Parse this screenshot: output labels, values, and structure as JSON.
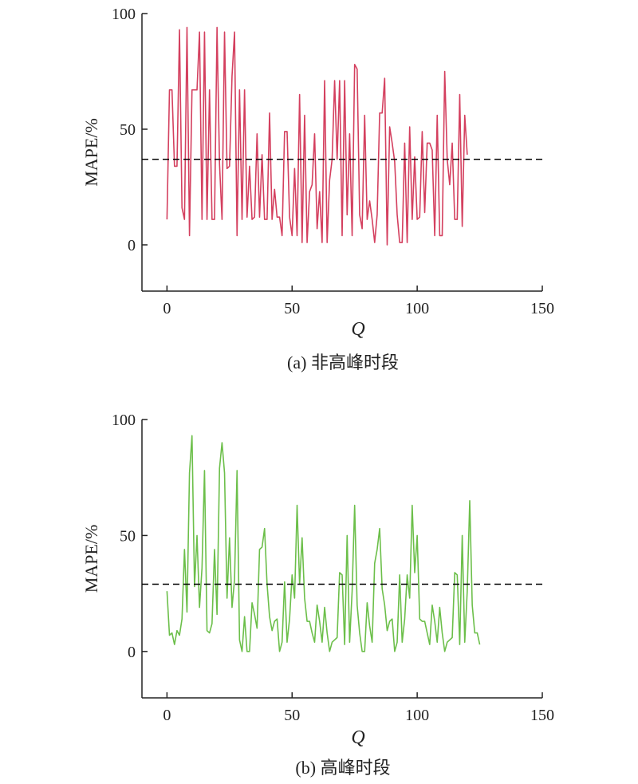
{
  "chart_data": [
    {
      "type": "line",
      "caption": "(a) 非高峰时段",
      "xlabel": "Q",
      "ylabel": "MAPE/%",
      "xlim": [
        -10,
        150
      ],
      "ylim": [
        -20,
        100
      ],
      "xticks": [
        "0",
        "50",
        "100",
        "150"
      ],
      "yticks": [
        "0",
        "50",
        "100"
      ],
      "color": "#d4405f",
      "reference_line": {
        "y": 37,
        "style": "dashed",
        "color": "#000000"
      },
      "series": [
        {
          "values": [
            11,
            67,
            67,
            34,
            34,
            93,
            16,
            11,
            94,
            4,
            67,
            67,
            67,
            92,
            11,
            92,
            11,
            67,
            11,
            11,
            94,
            35,
            11,
            92,
            33,
            34,
            73,
            92,
            4,
            67,
            11,
            67,
            12,
            34,
            11,
            12,
            48,
            12,
            39,
            11,
            11,
            57,
            11,
            24,
            12,
            12,
            4,
            49,
            49,
            12,
            4,
            33,
            4,
            65,
            1,
            56,
            1,
            23,
            26,
            48,
            7,
            23,
            1,
            71,
            1,
            28,
            37,
            71,
            37,
            71,
            4,
            71,
            13,
            48,
            4,
            78,
            76,
            13,
            7,
            56,
            11,
            19,
            11,
            1,
            13,
            57,
            57,
            72,
            0,
            51,
            44,
            36,
            13,
            1,
            1,
            44,
            1,
            51,
            11,
            38,
            11,
            12,
            49,
            14,
            44,
            44,
            41,
            4,
            56,
            4,
            4,
            75,
            37,
            26,
            44,
            11,
            11,
            65,
            8,
            56,
            39
          ]
        }
      ]
    },
    {
      "type": "line",
      "caption": "(b) 高峰时段",
      "xlabel": "Q",
      "ylabel": "MAPE/%",
      "xlim": [
        -10,
        150
      ],
      "ylim": [
        -20,
        100
      ],
      "xticks": [
        "0",
        "50",
        "100",
        "150"
      ],
      "yticks": [
        "0",
        "50",
        "100"
      ],
      "color": "#6cbf4a",
      "reference_line": {
        "y": 29,
        "style": "dashed",
        "color": "#000000"
      },
      "series": [
        {
          "values": [
            26,
            7,
            8,
            3,
            9,
            7,
            14,
            44,
            17,
            77,
            93,
            28,
            50,
            19,
            36,
            78,
            9,
            8,
            12,
            44,
            16,
            79,
            90,
            77,
            23,
            49,
            19,
            31,
            78,
            5,
            0,
            15,
            0,
            0,
            21,
            16,
            10,
            44,
            45,
            53,
            29,
            15,
            9,
            13,
            14,
            0,
            4,
            30,
            4,
            14,
            33,
            23,
            63,
            29,
            49,
            23,
            13,
            13,
            8,
            4,
            20,
            13,
            4,
            19,
            8,
            0,
            4,
            5,
            6,
            34,
            33,
            3,
            50,
            4,
            26,
            63,
            20,
            8,
            0,
            0,
            21,
            11,
            4,
            38,
            44,
            53,
            27,
            20,
            9,
            13,
            14,
            0,
            4,
            33,
            4,
            14,
            33,
            23,
            63,
            34,
            50,
            14,
            13,
            13,
            8,
            3,
            20,
            13,
            4,
            19,
            8,
            0,
            4,
            5,
            6,
            34,
            33,
            3,
            50,
            4,
            26,
            65,
            20,
            8,
            8,
            3
          ]
        }
      ]
    }
  ]
}
